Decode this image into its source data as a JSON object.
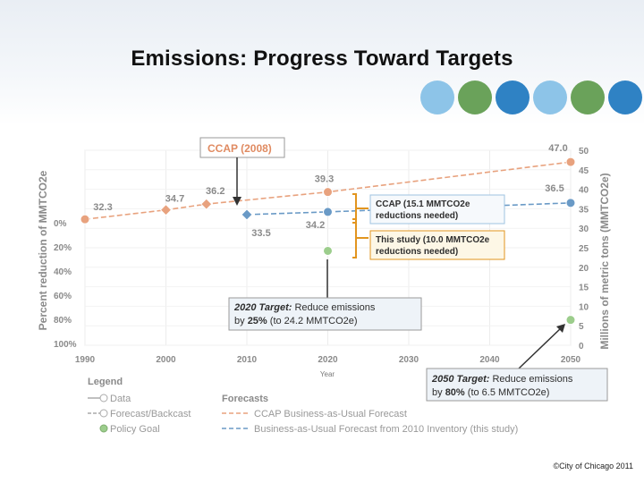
{
  "slide": {
    "title": "Emissions: Progress Toward Targets",
    "copyright": "©City of Chicago 2011"
  },
  "decor": {
    "dot_colors": [
      "#8dc4e8",
      "#6aa25a",
      "#2f82c4",
      "#8dc4e8",
      "#6aa25a",
      "#2f82c4"
    ]
  },
  "chart_data": {
    "type": "line",
    "x": [
      1990,
      2000,
      2010,
      2020,
      2030,
      2040,
      2050
    ],
    "xlabel": "Year",
    "ylabel_left": "Percent reduction of MMTCO2e",
    "ylabel_right": "Millions of metric tons (MMTCO2e)",
    "right_ticks": [
      "50",
      "45",
      "40",
      "35",
      "30",
      "25",
      "20",
      "15",
      "10",
      "5",
      "0"
    ],
    "left_ticks": [
      "0%",
      "20%",
      "40%",
      "60%",
      "80%",
      "100%"
    ],
    "ylim": [
      0,
      50
    ],
    "grid": true,
    "series": [
      {
        "name": "CCAP Business-as-Usual Forecast",
        "color": "#e8a27e",
        "points": [
          {
            "x": 1990,
            "y": 32.3,
            "label": "32.3",
            "marker": "circle"
          },
          {
            "x": 2000,
            "y": 34.7,
            "label": "34.7",
            "marker": "diamond"
          },
          {
            "x": 2005,
            "y": 36.2,
            "label": "36.2",
            "marker": "diamond"
          },
          {
            "x": 2020,
            "y": 39.3,
            "label": "39.3",
            "marker": "circle"
          },
          {
            "x": 2050,
            "y": 47.0,
            "label": "47.0",
            "marker": "circle"
          }
        ]
      },
      {
        "name": "Business-as-Usual Forecast from 2010 Inventory (this study)",
        "color": "#6a9ac6",
        "points": [
          {
            "x": 2010,
            "y": 33.5,
            "label": "33.5",
            "marker": "diamond"
          },
          {
            "x": 2020,
            "y": 34.2,
            "label": "34.2",
            "marker": "circle"
          },
          {
            "x": 2050,
            "y": 36.5,
            "label": "36.5",
            "marker": "circle"
          }
        ]
      },
      {
        "name": "Policy Goal",
        "color": "#9ccd8c",
        "points": [
          {
            "x": 2020,
            "y": 24.2,
            "marker": "circle"
          },
          {
            "x": 2050,
            "y": 6.5,
            "marker": "circle"
          }
        ]
      }
    ],
    "annotations": {
      "ccap_label": "CCAP (2008)",
      "ccap_reduction_line1": "CCAP (15.1 MMTCO2e",
      "ccap_reduction_line2": "reductions needed)",
      "study_reduction_line1": "This study (10.0 MMTCO2e",
      "study_reduction_line2": "reductions needed)",
      "t2020_bold": "2020 Target:",
      "t2020_rest": " Reduce emissions",
      "t2020_line2_pre": "by ",
      "t2020_pct": "25%",
      "t2020_line2_post": " (to 24.2 MMTCO2e)",
      "t2050_bold": "2050 Target:",
      "t2050_rest": " Reduce emissions",
      "t2050_line2_pre": "by ",
      "t2050_pct": "80%",
      "t2050_line2_post": " (to 6.5 MMTCO2e)"
    },
    "legend": {
      "title": "Legend",
      "items": [
        "Data",
        "Forecast/Backcast",
        "Policy Goal"
      ],
      "forecasts_title": "Forecasts",
      "forecasts": [
        "CCAP Business-as-Usual Forecast",
        "Business-as-Usual Forecast from 2010 Inventory (this study)"
      ]
    }
  }
}
